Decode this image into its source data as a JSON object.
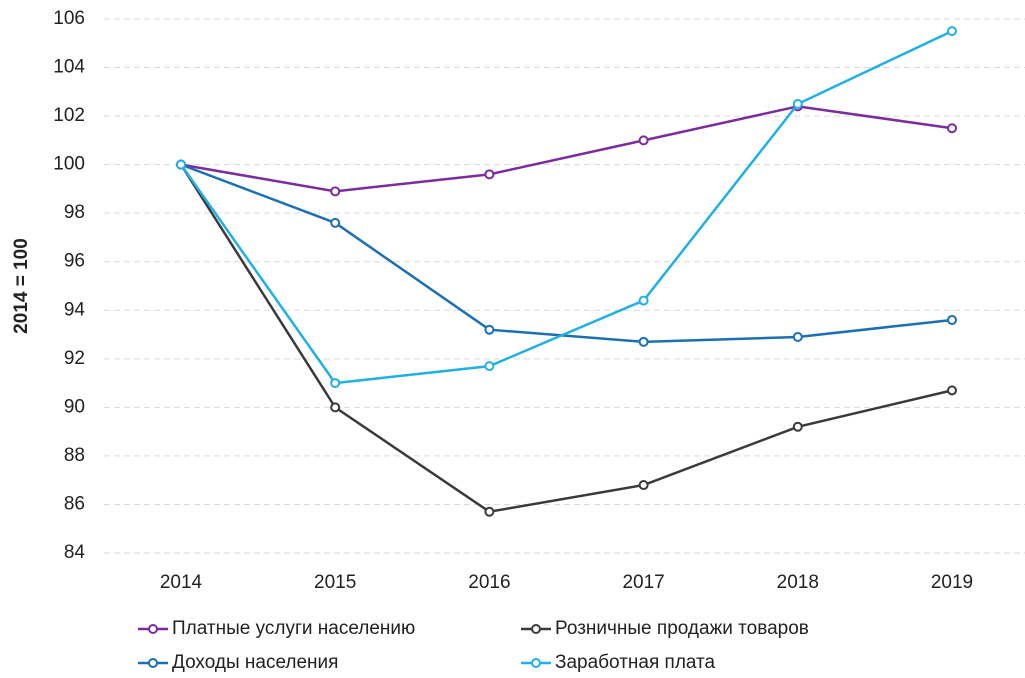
{
  "chart_data": {
    "type": "line",
    "ylabel": "2014 = 100",
    "categories": [
      "2014",
      "2015",
      "2016",
      "2017",
      "2018",
      "2019"
    ],
    "series": [
      {
        "name": "Платные услуги населению",
        "color": "#7b2d9e",
        "values": [
          100,
          98.9,
          99.6,
          101.0,
          102.4,
          101.5
        ]
      },
      {
        "name": "Розничные продажи товаров",
        "color": "#3a3a3a",
        "values": [
          100,
          90.0,
          85.7,
          86.8,
          89.2,
          90.7
        ]
      },
      {
        "name": "Доходы населения",
        "color": "#1a6fb5",
        "values": [
          100,
          97.6,
          93.2,
          92.7,
          92.9,
          93.6
        ]
      },
      {
        "name": "Заработная плата",
        "color": "#1fb0e6",
        "values": [
          100,
          91.0,
          91.7,
          94.4,
          102.5,
          105.5
        ]
      }
    ],
    "ylim": [
      84,
      106
    ],
    "yticks": [
      84,
      86,
      88,
      90,
      92,
      94,
      96,
      98,
      100,
      102,
      104,
      106
    ],
    "grid": true,
    "legend": "bottom"
  }
}
